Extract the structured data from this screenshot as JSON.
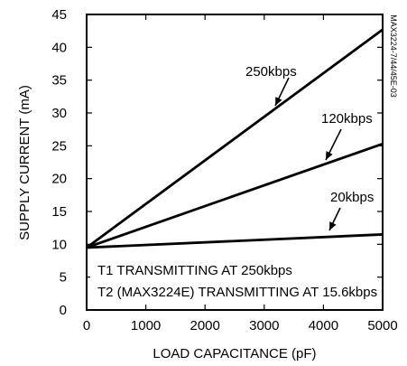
{
  "chart_data": {
    "type": "line",
    "xlabel": "LOAD CAPACITANCE (pF)",
    "ylabel": "SUPPLY CURRENT (mA)",
    "xlim": [
      0,
      5000
    ],
    "ylim": [
      0,
      45
    ],
    "x_ticks": [
      0,
      1000,
      2000,
      3000,
      4000,
      5000
    ],
    "y_ticks": [
      0,
      5,
      10,
      15,
      20,
      25,
      30,
      35,
      40,
      45
    ],
    "grid": false,
    "series": [
      {
        "name": "250kbps",
        "x": [
          0,
          5000
        ],
        "y": [
          9.5,
          42.7
        ]
      },
      {
        "name": "120kbps",
        "x": [
          0,
          5000
        ],
        "y": [
          9.5,
          25.3
        ]
      },
      {
        "name": "20kbps",
        "x": [
          0,
          5000
        ],
        "y": [
          9.5,
          11.5
        ]
      }
    ],
    "annotations": [
      "T1 TRANSMITTING AT 250kbps",
      "T2 (MAX3224E) TRANSMITTING AT 15.6kbps"
    ],
    "side_label": "MAX3224-7/44/45E-03"
  }
}
